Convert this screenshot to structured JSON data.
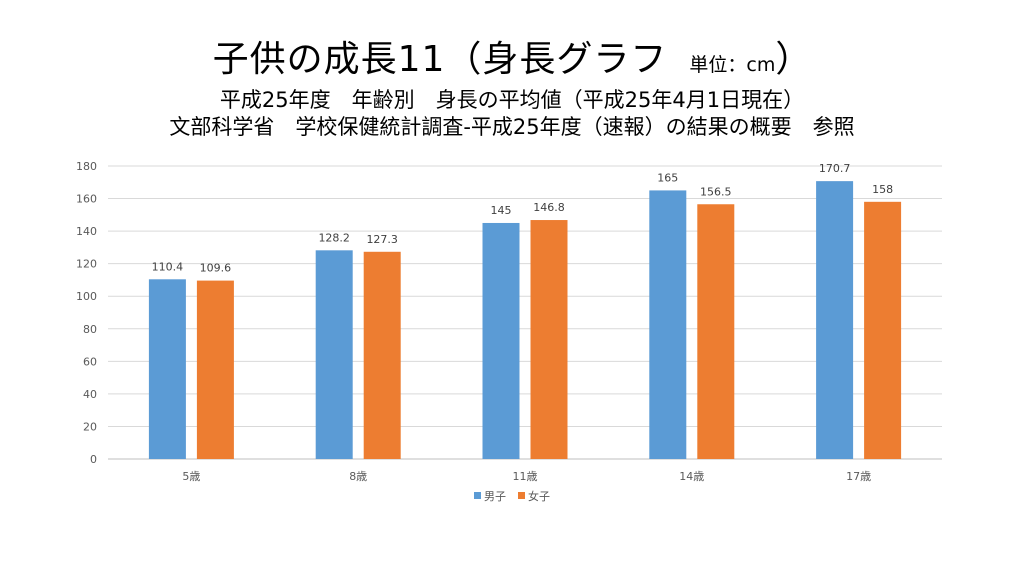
{
  "header": {
    "title_main": "子供の成長11（身長グラフ",
    "title_unit": "単位：cm",
    "title_close": "）",
    "line2": "平成25年度　年齢別　身長の平均値（平成25年4月1日現在）",
    "line3": "文部科学省　学校保健統計調査-平成25年度（速報）の結果の概要　参照"
  },
  "chart_data": {
    "type": "bar",
    "categories": [
      "5歳",
      "8歳",
      "11歳",
      "14歳",
      "17歳"
    ],
    "series": [
      {
        "name": "男子",
        "color": "#5B9BD5",
        "values": [
          110.4,
          128.2,
          145,
          165,
          170.7
        ]
      },
      {
        "name": "女子",
        "color": "#ED7D31",
        "values": [
          109.6,
          127.3,
          146.8,
          156.5,
          158
        ]
      }
    ],
    "ylim": [
      0,
      180
    ],
    "yticks": [
      0,
      20,
      40,
      60,
      80,
      100,
      120,
      140,
      160,
      180
    ],
    "grid": true,
    "legend": "bottom-center"
  }
}
